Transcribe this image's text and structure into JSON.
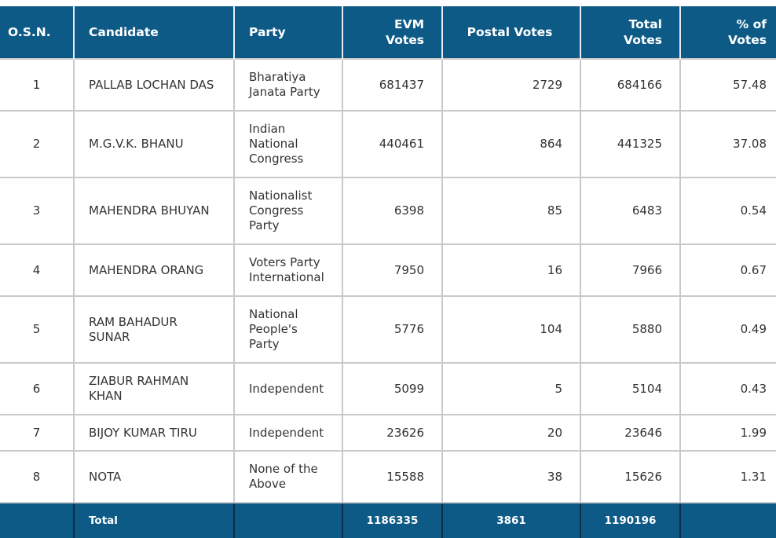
{
  "table": {
    "headers": {
      "osn": "O.S.N.",
      "candidate": "Candidate",
      "party": "Party",
      "evm_line1": "EVM",
      "evm_line2": "Votes",
      "postal": "Postal Votes",
      "total_line1": "Total",
      "total_line2": "Votes",
      "pct_line1": "% of",
      "pct_line2": "Votes"
    },
    "rows": [
      {
        "osn": "1",
        "candidate": "PALLAB LOCHAN DAS",
        "party": "Bharatiya Janata Party",
        "evm": "681437",
        "postal": "2729",
        "total": "684166",
        "pct": "57.48"
      },
      {
        "osn": "2",
        "candidate": "M.G.V.K. BHANU",
        "party": "Indian National Congress",
        "evm": "440461",
        "postal": "864",
        "total": "441325",
        "pct": "37.08"
      },
      {
        "osn": "3",
        "candidate": "MAHENDRA BHUYAN",
        "party": "Nationalist Congress Party",
        "evm": "6398",
        "postal": "85",
        "total": "6483",
        "pct": "0.54"
      },
      {
        "osn": "4",
        "candidate": "MAHENDRA ORANG",
        "party": "Voters Party International",
        "evm": "7950",
        "postal": "16",
        "total": "7966",
        "pct": "0.67"
      },
      {
        "osn": "5",
        "candidate": "RAM BAHADUR SUNAR",
        "party": "National People's Party",
        "evm": "5776",
        "postal": "104",
        "total": "5880",
        "pct": "0.49"
      },
      {
        "osn": "6",
        "candidate": "ZIABUR RAHMAN KHAN",
        "party": "Independent",
        "evm": "5099",
        "postal": "5",
        "total": "5104",
        "pct": "0.43"
      },
      {
        "osn": "7",
        "candidate": "BIJOY KUMAR TIRU",
        "party": "Independent",
        "evm": "23626",
        "postal": "20",
        "total": "23646",
        "pct": "1.99"
      },
      {
        "osn": "8",
        "candidate": "NOTA",
        "party": "None of the Above",
        "evm": "15588",
        "postal": "38",
        "total": "15626",
        "pct": "1.31"
      }
    ],
    "footer": {
      "label": "Total",
      "evm": "1186335",
      "postal": "3861",
      "total": "1190196"
    }
  },
  "colors": {
    "header_bg": "#0e5a87",
    "header_text": "#ffffff",
    "body_text": "#333333",
    "grid": "#c9c9c9"
  }
}
